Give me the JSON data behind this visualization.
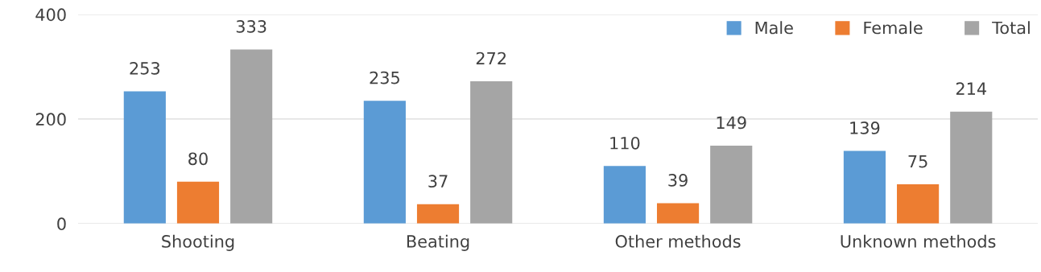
{
  "chart_data": {
    "type": "bar",
    "categories": [
      "Shooting",
      "Beating",
      "Other methods",
      "Unknown methods"
    ],
    "series": [
      {
        "name": "Male",
        "color": "#5b9bd5",
        "values": [
          253,
          235,
          110,
          139
        ]
      },
      {
        "name": "Female",
        "color": "#ed7d31",
        "values": [
          80,
          37,
          39,
          75
        ]
      },
      {
        "name": "Total",
        "color": "#a5a5a5",
        "values": [
          333,
          272,
          149,
          214
        ]
      }
    ],
    "ylim": [
      0,
      400
    ],
    "yticks": [
      0,
      200,
      400
    ],
    "grid": "y",
    "legend": "top right",
    "data_labels": true
  }
}
